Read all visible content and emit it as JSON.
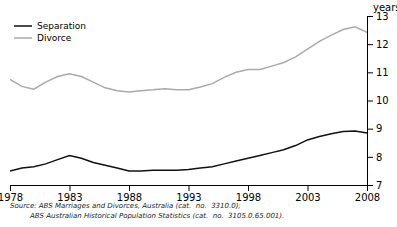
{
  "chart_data": {
    "type": "line",
    "x": [
      1978,
      1979,
      1980,
      1981,
      1982,
      1983,
      1984,
      1985,
      1986,
      1987,
      1988,
      1989,
      1990,
      1991,
      1992,
      1993,
      1994,
      1995,
      1996,
      1997,
      1998,
      1999,
      2000,
      2001,
      2002,
      2003,
      2004,
      2005,
      2006,
      2007,
      2008
    ],
    "series": [
      {
        "name": "Separation",
        "color": "#111111",
        "values": [
          7.5,
          7.6,
          7.65,
          7.75,
          7.9,
          8.05,
          7.95,
          7.8,
          7.7,
          7.6,
          7.5,
          7.5,
          7.52,
          7.52,
          7.52,
          7.55,
          7.6,
          7.65,
          7.75,
          7.85,
          7.95,
          8.05,
          8.15,
          8.25,
          8.4,
          8.6,
          8.72,
          8.82,
          8.9,
          8.92,
          8.85
        ]
      },
      {
        "name": "Divorce",
        "color": "#aaaaaa",
        "values": [
          10.75,
          10.5,
          10.4,
          10.65,
          10.85,
          10.95,
          10.85,
          10.65,
          10.45,
          10.35,
          10.3,
          10.35,
          10.38,
          10.42,
          10.38,
          10.38,
          10.48,
          10.6,
          10.82,
          11.0,
          11.1,
          11.1,
          11.22,
          11.35,
          11.55,
          11.82,
          12.1,
          12.32,
          12.52,
          12.62,
          12.42
        ]
      }
    ],
    "ylabel": "years",
    "xlim": [
      1978,
      2008
    ],
    "xticks": [
      1978,
      1983,
      1988,
      1993,
      1998,
      2003,
      2008
    ],
    "ylim": [
      7,
      13
    ],
    "yticks": [
      7,
      8,
      9,
      10,
      11,
      12,
      13
    ],
    "grid": false,
    "legend": "upper left",
    "annotations": [
      "Source: ABS Marriages and Divorces, Australia (cat.  no.  3310.0);",
      "         ABS Australian Historical Population Statistics (cat.  no.  3105.0.65.001)."
    ]
  }
}
